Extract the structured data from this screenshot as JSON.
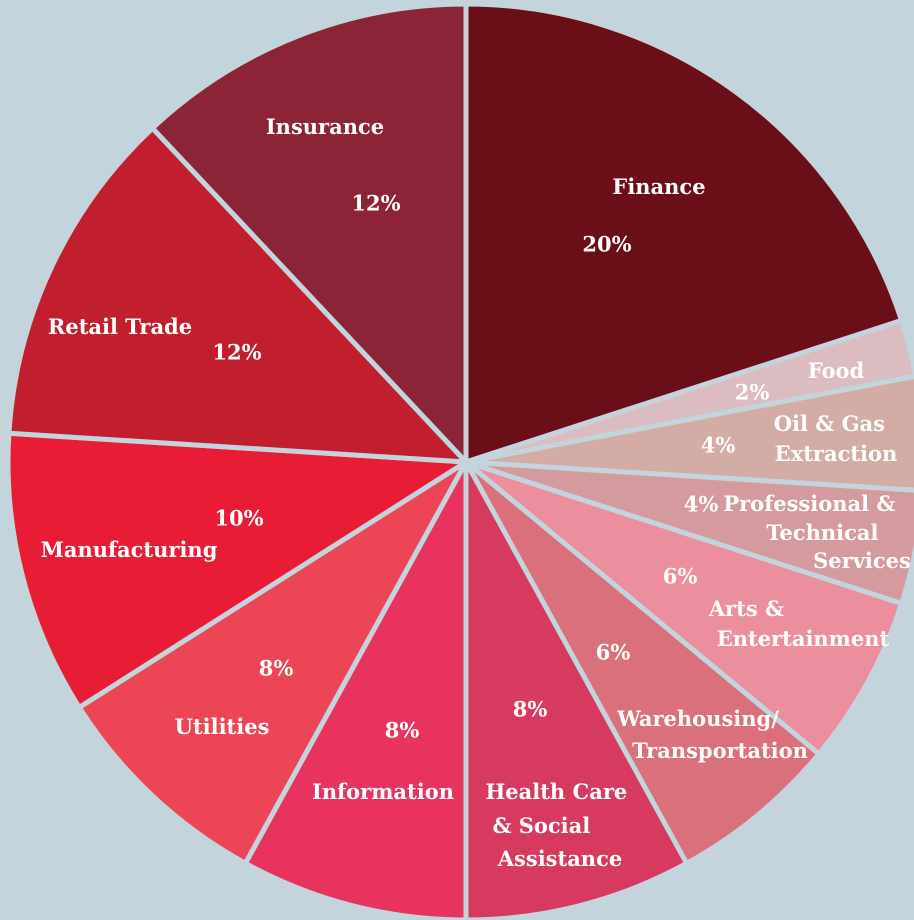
{
  "chart_data": {
    "type": "pie",
    "categories": [
      "Finance",
      "Food",
      "Oil & Gas Extraction",
      "Professional & Technical Services",
      "Arts & Entertainment",
      "Warehousing/Transportation",
      "Health Care & Social Assistance",
      "Information",
      "Utilities",
      "Manufacturing",
      "Retail Trade",
      "Insurance"
    ],
    "values": [
      20,
      2,
      4,
      4,
      6,
      6,
      8,
      8,
      8,
      10,
      12,
      12
    ],
    "value_labels": [
      "20%",
      "2%",
      "4%",
      "4%",
      "6%",
      "6%",
      "8%",
      "8%",
      "8%",
      "10%",
      "12%",
      "12%"
    ],
    "colors": [
      "#6a0e18",
      "#dbbcc0",
      "#d4aca6",
      "#d49a9e",
      "#eb8f9f",
      "#d9707c",
      "#d63a5e",
      "#e8335f",
      "#ec4656",
      "#e81d35",
      "#c11f2e",
      "#8c2438"
    ]
  }
}
